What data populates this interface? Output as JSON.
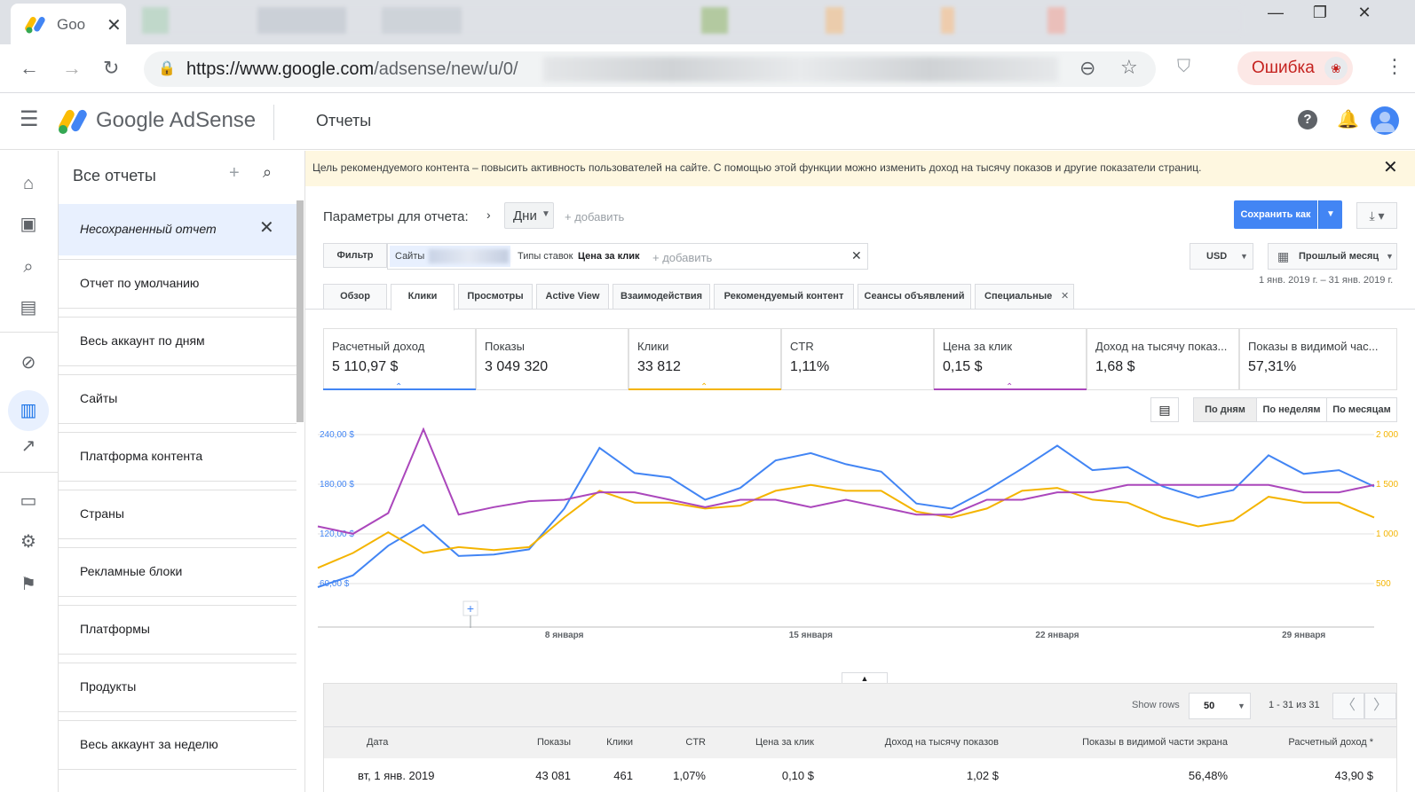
{
  "browser": {
    "tab_title": "Goo",
    "url_host": "https://www.google.com",
    "url_path": "/adsense/new/u/0/",
    "error_label": "Ошибка"
  },
  "header": {
    "brand": "Google AdSense",
    "page_title": "Отчеты"
  },
  "reports_panel": {
    "title": "Все отчеты",
    "unsaved": "Несохраненный отчет",
    "items": [
      "Отчет по умолчанию",
      "Весь аккаунт по дням",
      "Сайты",
      "Платформа контента",
      "Страны",
      "Рекламные блоки",
      "Платформы",
      "Продукты",
      "Весь аккаунт за неделю"
    ]
  },
  "banner": {
    "text": "Цель рекомендуемого контента – повысить активность пользователей на сайте. С помощью этой функции можно изменить доход на тысячу показов и другие показатели страниц."
  },
  "params": {
    "label": "Параметры для отчета:",
    "dimension": "Дни",
    "add": "+ добавить",
    "save_as": "Сохранить как",
    "filter_label": "Фильтр",
    "filter_sites": "Сайты",
    "filter_bid_type_label": "Типы ставок",
    "filter_bid_type_value": "Цена за клик",
    "filter_add": "+ добавить",
    "currency": "USD",
    "period": "Прошлый месяц",
    "date_range": "1 янв. 2019 г. – 31 янв. 2019 г."
  },
  "tabs": [
    "Обзор",
    "Клики",
    "Просмотры",
    "Active View",
    "Взаимодействия",
    "Рекомендуемый контент",
    "Сеансы объявлений",
    "Специальные"
  ],
  "metrics": [
    {
      "name": "Расчетный доход",
      "value": "5 110,97 $",
      "color": "#4285f4"
    },
    {
      "name": "Показы",
      "value": "3 049 320",
      "color": ""
    },
    {
      "name": "Клики",
      "value": "33 812",
      "color": "#f4b400"
    },
    {
      "name": "CTR",
      "value": "1,11%",
      "color": ""
    },
    {
      "name": "Цена за клик",
      "value": "0,15 $",
      "color": "#ab47bc"
    },
    {
      "name": "Доход на тысячу показ...",
      "value": "1,68 $",
      "color": ""
    },
    {
      "name": "Показы в видимой час...",
      "value": "57,31%",
      "color": ""
    }
  ],
  "grouping": [
    "По дням",
    "По неделям",
    "По месяцам"
  ],
  "chart_data": {
    "type": "line",
    "x_labels": [
      "8 января",
      "15 января",
      "22 января",
      "29 января"
    ],
    "y_left_ticks": [
      "240,00 $",
      "180,00 $",
      "120,00 $",
      "60,00 $"
    ],
    "y_right_ticks": [
      "2 000",
      "1 500",
      "1 000",
      "500"
    ],
    "days": [
      1,
      2,
      3,
      4,
      5,
      6,
      7,
      8,
      9,
      10,
      11,
      12,
      13,
      14,
      15,
      16,
      17,
      18,
      19,
      20,
      21,
      22,
      23,
      24,
      25,
      26,
      27,
      28,
      29,
      30,
      31
    ],
    "series": [
      {
        "name": "Расчетный доход",
        "color": "#4285f4",
        "axis": "left",
        "ylim": [
          50,
          250
        ],
        "values": [
          44,
          60,
          100,
          128,
          86,
          88,
          95,
          150,
          232,
          198,
          192,
          162,
          178,
          215,
          225,
          210,
          200,
          157,
          150,
          175,
          204,
          235,
          202,
          206,
          180,
          165,
          175,
          222,
          197,
          202,
          180
        ]
      },
      {
        "name": "Клики",
        "color": "#f4b400",
        "axis": "right",
        "ylim": [
          333,
          2000
        ],
        "values": [
          500,
          667,
          900,
          667,
          733,
          700,
          733,
          1067,
          1367,
          1233,
          1233,
          1167,
          1200,
          1367,
          1433,
          1367,
          1367,
          1133,
          1067,
          1167,
          1367,
          1400,
          1267,
          1233,
          1067,
          967,
          1033,
          1300,
          1233,
          1233,
          1067
        ]
      },
      {
        "name": "Цена за клик",
        "color": "#ab47bc",
        "axis": "left",
        "ylim": [
          50,
          250
        ],
        "values": [
          126,
          116,
          144,
          275,
          142,
          152,
          160,
          162,
          172,
          172,
          162,
          152,
          162,
          162,
          152,
          162,
          152,
          142,
          142,
          162,
          162,
          172,
          172,
          182,
          182,
          182,
          182,
          182,
          172,
          172,
          182
        ]
      }
    ]
  },
  "table": {
    "show_rows_label": "Show rows",
    "rows": "50",
    "range": "1 - 31 из 31",
    "headers": [
      "Дата",
      "Показы",
      "Клики",
      "CTR",
      "Цена за клик",
      "Доход на тысячу показов",
      "Показы в видимой части экрана",
      "Расчетный доход *"
    ],
    "first_row": [
      "вт, 1 янв. 2019",
      "43 081",
      "461",
      "1,07%",
      "0,10 $",
      "1,02 $",
      "56,48%",
      "43,90 $"
    ]
  }
}
